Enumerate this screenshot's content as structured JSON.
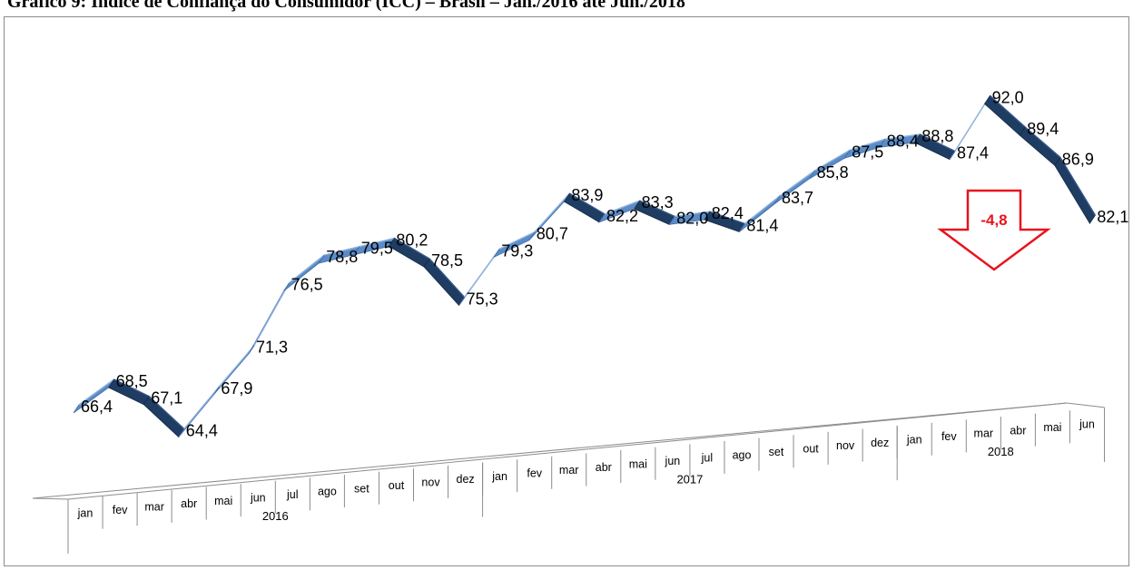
{
  "title": "Gráfico 9: Índice de Confiança do Consumidor (ICC) – Brasil – Jan./2016 até Jun./2018",
  "colors": {
    "line_top": "#5b8cc7",
    "line_dark": "#1f3c63",
    "callout": "#e8131c"
  },
  "callout": {
    "icon": "down-arrow-icon",
    "label": "-4,8"
  },
  "chart_data": {
    "type": "line",
    "title": "",
    "xlabel": "",
    "ylabel": "",
    "grid": false,
    "legend": "none",
    "categories": [
      "jan",
      "fev",
      "mar",
      "abr",
      "mai",
      "jun",
      "jul",
      "ago",
      "set",
      "out",
      "nov",
      "dez",
      "jan",
      "fev",
      "mar",
      "abr",
      "mai",
      "jun",
      "jul",
      "ago",
      "set",
      "out",
      "nov",
      "dez",
      "jan",
      "fev",
      "mar",
      "abr",
      "mai",
      "jun"
    ],
    "groups": [
      {
        "label": "2016",
        "start": 0,
        "count": 12
      },
      {
        "label": "2017",
        "start": 12,
        "count": 12
      },
      {
        "label": "2018",
        "start": 24,
        "count": 6
      }
    ],
    "values": [
      66.4,
      68.5,
      67.1,
      64.4,
      67.9,
      71.3,
      76.5,
      78.8,
      79.5,
      80.2,
      78.5,
      75.3,
      79.3,
      80.7,
      83.9,
      82.2,
      83.3,
      82.0,
      82.4,
      81.4,
      83.7,
      85.8,
      87.5,
      88.4,
      88.8,
      87.4,
      92.0,
      89.4,
      86.9,
      82.1
    ],
    "data_labels": [
      "66,4",
      "68,5",
      "67,1",
      "64,4",
      "67,9",
      "71,3",
      "76,5",
      "78,8",
      "79,5",
      "80,2",
      "78,5",
      "75,3",
      "79,3",
      "80,7",
      "83,9",
      "82,2",
      "83,3",
      "82,0",
      "82,4",
      "81,4",
      "83,7",
      "85,8",
      "87,5",
      "88,4",
      "88,8",
      "87,4",
      "92,0",
      "89,4",
      "86,9",
      "82,1"
    ]
  }
}
